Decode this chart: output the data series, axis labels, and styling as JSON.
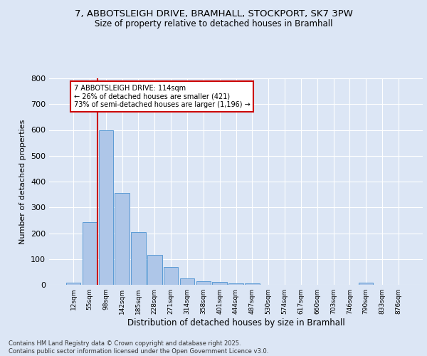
{
  "title_line1": "7, ABBOTSLEIGH DRIVE, BRAMHALL, STOCKPORT, SK7 3PW",
  "title_line2": "Size of property relative to detached houses in Bramhall",
  "xlabel": "Distribution of detached houses by size in Bramhall",
  "ylabel": "Number of detached properties",
  "bar_labels": [
    "12sqm",
    "55sqm",
    "98sqm",
    "142sqm",
    "185sqm",
    "228sqm",
    "271sqm",
    "314sqm",
    "358sqm",
    "401sqm",
    "444sqm",
    "487sqm",
    "530sqm",
    "574sqm",
    "617sqm",
    "660sqm",
    "703sqm",
    "746sqm",
    "790sqm",
    "833sqm",
    "876sqm"
  ],
  "bar_values": [
    8,
    242,
    598,
    355,
    205,
    115,
    70,
    25,
    13,
    10,
    5,
    5,
    0,
    0,
    0,
    0,
    0,
    0,
    8,
    0,
    0
  ],
  "bar_color": "#aec6e8",
  "bar_edge_color": "#5b9bd5",
  "bg_color": "#dce6f5",
  "grid_color": "#ffffff",
  "fig_bg_color": "#dce6f5",
  "vline_color": "#cc0000",
  "annotation_text": "7 ABBOTSLEIGH DRIVE: 114sqm\n← 26% of detached houses are smaller (421)\n73% of semi-detached houses are larger (1,196) →",
  "annotation_box_facecolor": "#ffffff",
  "annotation_box_edgecolor": "#cc0000",
  "footer_text": "Contains HM Land Registry data © Crown copyright and database right 2025.\nContains public sector information licensed under the Open Government Licence v3.0.",
  "ylim": [
    0,
    800
  ],
  "yticks": [
    0,
    100,
    200,
    300,
    400,
    500,
    600,
    700,
    800
  ]
}
